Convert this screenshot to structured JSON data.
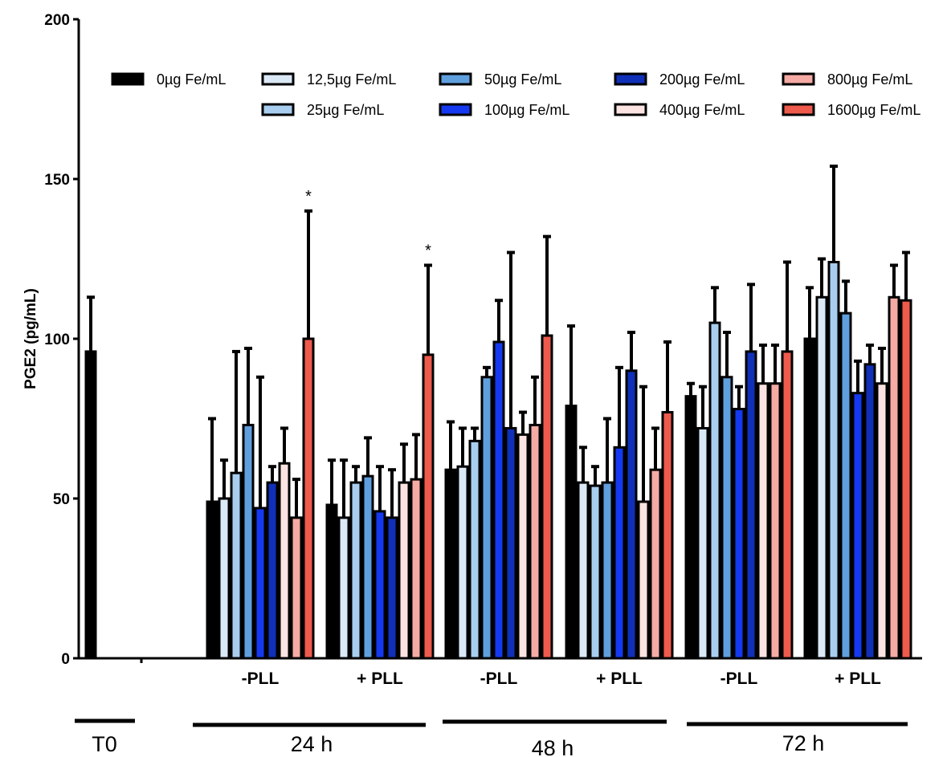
{
  "chart_data": {
    "type": "bar",
    "ylabel": "PGE2 (pg/mL)",
    "ylim": [
      0,
      200
    ],
    "yticks": [
      0,
      50,
      100,
      150,
      200
    ],
    "grid": false,
    "legend_position": "top",
    "series": [
      {
        "name": "0µg Fe/mL",
        "color": "#000000",
        "stroke": "#000000"
      },
      {
        "name": "12,5µg Fe/mL",
        "color": "#dbe8f6",
        "stroke": "#000000"
      },
      {
        "name": "25µg Fe/mL",
        "color": "#a8cdef",
        "stroke": "#000000"
      },
      {
        "name": "50µg Fe/mL",
        "color": "#5f9fde",
        "stroke": "#000000"
      },
      {
        "name": "100µg Fe/mL",
        "color": "#1439f0",
        "stroke": "#000000"
      },
      {
        "name": "200µg Fe/mL",
        "color": "#1030b8",
        "stroke": "#000000"
      },
      {
        "name": "400µg Fe/mL",
        "color": "#fbe3e1",
        "stroke": "#000000"
      },
      {
        "name": "800µg Fe/mL",
        "color": "#f5aaa4",
        "stroke": "#000000"
      },
      {
        "name": "1600µg Fe/mL",
        "color": "#ee5a4c",
        "stroke": "#000000"
      }
    ],
    "baseline": {
      "series_index": 0,
      "value": 96,
      "error": 17
    },
    "groups": [
      {
        "label": "-PLL",
        "period": "24 h",
        "values": [
          49,
          50,
          58,
          73,
          47,
          55,
          61,
          44,
          100
        ],
        "errors": [
          26,
          12,
          38,
          24,
          41,
          5,
          11,
          12,
          40
        ],
        "stars": [
          false,
          false,
          false,
          false,
          false,
          false,
          false,
          false,
          true
        ]
      },
      {
        "label": "+ PLL",
        "period": "24 h",
        "values": [
          48,
          44,
          55,
          57,
          46,
          44,
          55,
          56,
          95
        ],
        "errors": [
          14,
          18,
          5,
          12,
          14,
          15,
          12,
          14,
          28
        ],
        "stars": [
          false,
          false,
          false,
          false,
          false,
          false,
          false,
          false,
          true
        ]
      },
      {
        "label": "-PLL",
        "period": "48 h",
        "values": [
          59,
          60,
          68,
          88,
          99,
          72,
          70,
          73,
          101
        ],
        "errors": [
          15,
          12,
          4,
          3,
          13,
          55,
          7,
          15,
          31
        ],
        "stars": [
          false,
          false,
          false,
          false,
          false,
          false,
          false,
          false,
          false
        ]
      },
      {
        "label": "+ PLL",
        "period": "48 h",
        "values": [
          79,
          55,
          54,
          55,
          66,
          90,
          49,
          59,
          77
        ],
        "errors": [
          25,
          11,
          6,
          20,
          25,
          12,
          36,
          13,
          22
        ],
        "stars": [
          false,
          false,
          false,
          false,
          false,
          false,
          false,
          false,
          false
        ]
      },
      {
        "label": "-PLL",
        "period": "72 h",
        "values": [
          82,
          72,
          105,
          88,
          78,
          96,
          86,
          86,
          96
        ],
        "errors": [
          4,
          13,
          11,
          14,
          7,
          21,
          12,
          12,
          28
        ],
        "stars": [
          false,
          false,
          false,
          false,
          false,
          false,
          false,
          false,
          false
        ]
      },
      {
        "label": "+ PLL",
        "period": "72 h",
        "values": [
          100,
          113,
          124,
          108,
          83,
          92,
          86,
          113,
          112
        ],
        "errors": [
          16,
          12,
          30,
          10,
          10,
          6,
          11,
          10,
          15
        ],
        "stars": [
          false,
          false,
          false,
          false,
          false,
          false,
          false,
          false,
          false
        ]
      }
    ],
    "periods": [
      "T0",
      "24 h",
      "48 h",
      "72 h"
    ],
    "star_symbol": "*"
  }
}
